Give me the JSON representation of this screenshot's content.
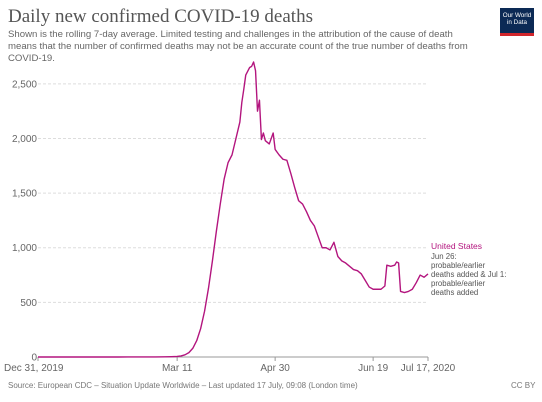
{
  "header": {
    "title": "Daily new confirmed COVID-19 deaths",
    "subtitle": "Shown is the rolling 7-day average. Limited testing and challenges in the attribution of the cause of death means that the number of confirmed deaths may not be an accurate count of the true number of deaths from COVID-19."
  },
  "logo": {
    "line1": "Our World",
    "line2": "in Data",
    "bg_color": "#0c2a55",
    "bar_color": "#d1262c"
  },
  "footer": {
    "source": "Source: European CDC – Situation Update Worldwide – Last updated 17 July, 09:08 (London time)",
    "license": "CC BY"
  },
  "chart_data": {
    "type": "line",
    "title": "Daily new confirmed COVID-19 deaths",
    "xlabel": "",
    "ylabel": "",
    "ylim": [
      0,
      2700
    ],
    "y_ticks": [
      0,
      500,
      1000,
      1500,
      2000,
      2500
    ],
    "y_tick_labels": [
      "0",
      "500",
      "1,000",
      "1,500",
      "2,000",
      "2,500"
    ],
    "x_ticks": [
      "2019-12-31",
      "2020-03-11",
      "2020-04-30",
      "2020-06-19",
      "2020-07-17"
    ],
    "x_tick_labels": [
      "Dec 31, 2019",
      "Mar 11",
      "Apr 30",
      "Jun 19",
      "Jul 17, 2020"
    ],
    "xlim": [
      "2019-12-31",
      "2020-07-17"
    ],
    "grid": "horizontal-dashed",
    "series": [
      {
        "name": "United States",
        "color": "#b3157e",
        "annotation": "Jun 26: probable/earlier deaths added & Jul 1: probable/earlier deaths added",
        "points": [
          [
            "2019-12-31",
            0
          ],
          [
            "2020-01-20",
            0
          ],
          [
            "2020-02-10",
            0
          ],
          [
            "2020-02-29",
            1
          ],
          [
            "2020-03-05",
            2
          ],
          [
            "2020-03-08",
            3
          ],
          [
            "2020-03-11",
            5
          ],
          [
            "2020-03-13",
            10
          ],
          [
            "2020-03-15",
            20
          ],
          [
            "2020-03-17",
            40
          ],
          [
            "2020-03-19",
            80
          ],
          [
            "2020-03-21",
            150
          ],
          [
            "2020-03-23",
            260
          ],
          [
            "2020-03-25",
            420
          ],
          [
            "2020-03-27",
            630
          ],
          [
            "2020-03-29",
            880
          ],
          [
            "2020-03-31",
            1150
          ],
          [
            "2020-04-02",
            1400
          ],
          [
            "2020-04-04",
            1630
          ],
          [
            "2020-04-06",
            1780
          ],
          [
            "2020-04-08",
            1850
          ],
          [
            "2020-04-10",
            2000
          ],
          [
            "2020-04-12",
            2150
          ],
          [
            "2020-04-13",
            2330
          ],
          [
            "2020-04-14",
            2450
          ],
          [
            "2020-04-15",
            2580
          ],
          [
            "2020-04-17",
            2650
          ],
          [
            "2020-04-18",
            2660
          ],
          [
            "2020-04-19",
            2700
          ],
          [
            "2020-04-20",
            2620
          ],
          [
            "2020-04-21",
            2250
          ],
          [
            "2020-04-22",
            2350
          ],
          [
            "2020-04-23",
            1990
          ],
          [
            "2020-04-24",
            2050
          ],
          [
            "2020-04-25",
            1980
          ],
          [
            "2020-04-27",
            1950
          ],
          [
            "2020-04-29",
            2050
          ],
          [
            "2020-04-30",
            1900
          ],
          [
            "2020-05-02",
            1850
          ],
          [
            "2020-05-04",
            1810
          ],
          [
            "2020-05-06",
            1800
          ],
          [
            "2020-05-08",
            1680
          ],
          [
            "2020-05-10",
            1550
          ],
          [
            "2020-05-12",
            1430
          ],
          [
            "2020-05-14",
            1400
          ],
          [
            "2020-05-16",
            1330
          ],
          [
            "2020-05-18",
            1250
          ],
          [
            "2020-05-20",
            1200
          ],
          [
            "2020-05-22",
            1100
          ],
          [
            "2020-05-24",
            1000
          ],
          [
            "2020-05-26",
            1000
          ],
          [
            "2020-05-28",
            980
          ],
          [
            "2020-05-30",
            1050
          ],
          [
            "2020-06-01",
            920
          ],
          [
            "2020-06-03",
            880
          ],
          [
            "2020-06-05",
            860
          ],
          [
            "2020-06-07",
            830
          ],
          [
            "2020-06-09",
            800
          ],
          [
            "2020-06-11",
            790
          ],
          [
            "2020-06-13",
            760
          ],
          [
            "2020-06-15",
            700
          ],
          [
            "2020-06-17",
            640
          ],
          [
            "2020-06-19",
            620
          ],
          [
            "2020-06-21",
            620
          ],
          [
            "2020-06-23",
            620
          ],
          [
            "2020-06-25",
            650
          ],
          [
            "2020-06-26",
            840
          ],
          [
            "2020-06-28",
            830
          ],
          [
            "2020-06-30",
            840
          ],
          [
            "2020-07-01",
            870
          ],
          [
            "2020-07-02",
            860
          ],
          [
            "2020-07-03",
            600
          ],
          [
            "2020-07-05",
            590
          ],
          [
            "2020-07-07",
            600
          ],
          [
            "2020-07-09",
            620
          ],
          [
            "2020-07-11",
            680
          ],
          [
            "2020-07-13",
            750
          ],
          [
            "2020-07-15",
            730
          ],
          [
            "2020-07-17",
            760
          ]
        ]
      }
    ]
  }
}
